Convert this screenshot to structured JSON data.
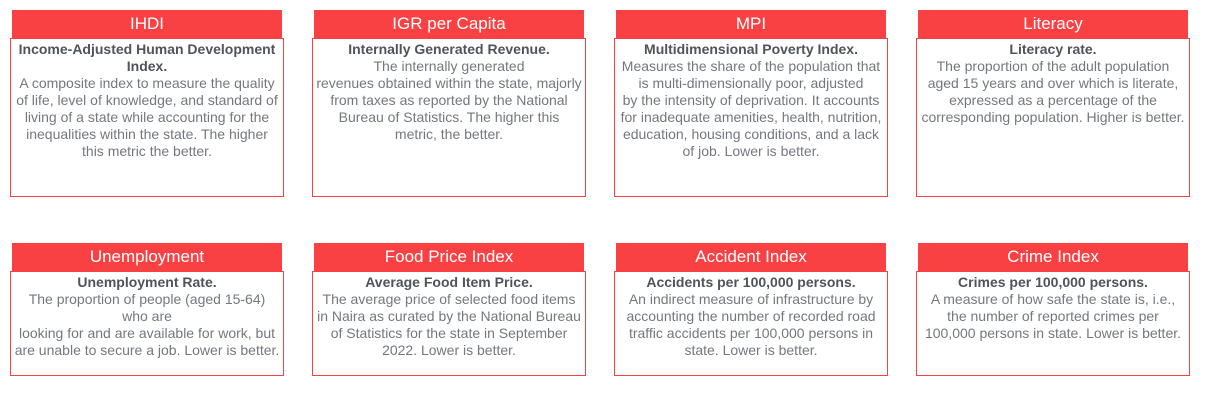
{
  "theme": {
    "accent_red": "#f94144",
    "header_text_color": "#ffffff",
    "lead_text_color": "#4f545b",
    "description_text_color": "#74787e"
  },
  "cards": [
    {
      "id": "ihdi",
      "title": "IHDI",
      "lead": "Income-Adjusted Human Development Index.",
      "description": "A composite index to measure the quality of life, level of knowledge, and standard of living of a state while accounting for the inequalities within the state. The higher this metric the better."
    },
    {
      "id": "igr-per-capita",
      "title": "IGR per Capita",
      "lead": "Internally Generated Revenue.",
      "description": "The internally generated\nrevenues obtained within the state, majorly from taxes as reported by the National Bureau of Statistics. The higher this metric, the better."
    },
    {
      "id": "mpi",
      "title": "MPI",
      "lead": "Multidimensional Poverty Index.",
      "description": "Measures the share of the population that is multi-dimensionally poor, adjusted\nby the intensity of deprivation. It accounts for inadequate amenities, health, nutrition, education, housing conditions, and a lack of job. Lower is better."
    },
    {
      "id": "literacy",
      "title": "Literacy",
      "lead": "Literacy rate.",
      "description": "The proportion of the adult population aged 15 years and over which is literate, expressed as a percentage of the corresponding population. Higher is better."
    },
    {
      "id": "unemployment",
      "title": "Unemployment",
      "lead": "Unemployment Rate.",
      "description": "The proportion of people (aged 15-64) who are\nlooking for and are available for work, but are unable to secure a job. Lower is better."
    },
    {
      "id": "food-price-index",
      "title": "Food Price Index",
      "lead": "Average Food Item Price.",
      "description": "The average price of selected food items in Naira as curated by the National Bureau of Statistics for the state in September 2022. Lower is better."
    },
    {
      "id": "accident-index",
      "title": "Accident Index",
      "lead": "Accidents per 100,000 persons.",
      "description": "An indirect measure of infrastructure by accounting the number of recorded road traffic accidents per 100,000 persons in state. Lower is better."
    },
    {
      "id": "crime-index",
      "title": "Crime Index",
      "lead": "Crimes per 100,000 persons.",
      "description": "A measure of how safe the state is, i.e., the number of reported crimes per 100,000 persons in state. Lower is better."
    }
  ]
}
